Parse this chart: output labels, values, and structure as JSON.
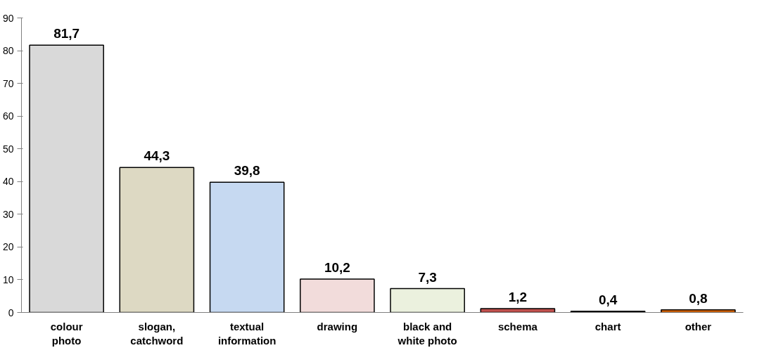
{
  "chart_data": {
    "type": "bar",
    "categories": [
      "colour\nphoto",
      "slogan,\ncatchword",
      "textual\ninformation",
      "drawing",
      "black and\nwhite photo",
      "schema",
      "chart",
      "other"
    ],
    "values": [
      81.7,
      44.3,
      39.8,
      10.2,
      7.3,
      1.2,
      0.4,
      0.8
    ],
    "value_labels": [
      "81,7",
      "44,3",
      "39,8",
      "10,2",
      "7,3",
      "1,2",
      "0,4",
      "0,8"
    ],
    "colors": [
      "#d9d9d9",
      "#ddd9c3",
      "#c6d9f1",
      "#f2dcdb",
      "#ebf1de",
      "#c0504d",
      "#000000",
      "#e46c0a"
    ],
    "ylim": [
      0,
      90
    ],
    "yticks": [
      0,
      10,
      20,
      30,
      40,
      50,
      60,
      70,
      80,
      90
    ],
    "grid": false
  }
}
